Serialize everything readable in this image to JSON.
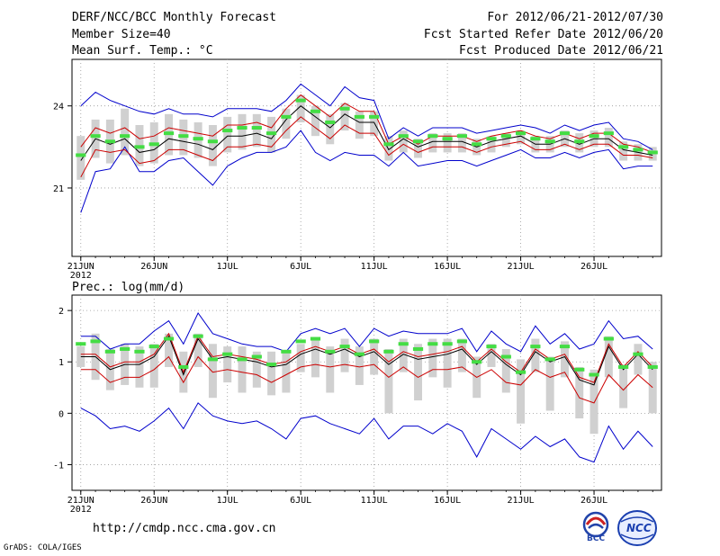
{
  "header": {
    "title": "DERF/NCC/BCC Monthly Forecast",
    "member_size": "Member Size=40",
    "variable": "Mean Surf. Temp.: °C",
    "forecast_period": "For 2012/06/21-2012/07/30",
    "started_refer_date": "Fcst Started Refer Date 2012/06/20",
    "produced_date": "Fcst Produced Date 2012/06/21"
  },
  "footer": {
    "url": "http://cmdp.ncc.cma.gov.cn",
    "credit": "GrADS: COLA/IGES",
    "logo_left_text": "BCC",
    "logo_right_text": "NCC"
  },
  "colors": {
    "mean": "#000000",
    "max": "#0000cc",
    "min": "#cc0000",
    "box": "#d0d0d0",
    "marker": "#44dd44"
  },
  "chart_data": [
    {
      "type": "line",
      "title": "Mean Surf. Temp.: °C",
      "xlabel": "",
      "ylabel": "",
      "ylim": [
        18.5,
        25.7
      ],
      "yticks": [
        21,
        24
      ],
      "x": [
        1,
        2,
        3,
        4,
        5,
        6,
        7,
        8,
        9,
        10,
        11,
        12,
        13,
        14,
        15,
        16,
        17,
        18,
        19,
        20,
        21,
        22,
        23,
        24,
        25,
        26,
        27,
        28,
        29,
        30,
        31,
        32,
        33,
        34,
        35,
        36,
        37,
        38,
        39,
        40
      ],
      "xticks": [
        {
          "x": 1,
          "label": "21JUN"
        },
        {
          "x": 6,
          "label": "26JUN"
        },
        {
          "x": 11,
          "label": "1JUL"
        },
        {
          "x": 16,
          "label": "6JUL"
        },
        {
          "x": 21,
          "label": "11JUL"
        },
        {
          "x": 26,
          "label": "16JUL"
        },
        {
          "x": 31,
          "label": "21JUL"
        },
        {
          "x": 36,
          "label": "26JUL"
        }
      ],
      "year_label": "2012",
      "series": [
        {
          "name": "max",
          "values": [
            24.0,
            24.5,
            24.2,
            24.0,
            23.8,
            23.7,
            23.9,
            23.7,
            23.7,
            23.6,
            23.9,
            23.9,
            23.9,
            23.8,
            24.2,
            24.8,
            24.4,
            24.0,
            24.7,
            24.3,
            24.2,
            22.8,
            23.2,
            22.9,
            23.2,
            23.2,
            23.2,
            23.0,
            23.1,
            23.2,
            23.3,
            23.2,
            23.0,
            23.3,
            23.1,
            23.3,
            23.4,
            22.8,
            22.7,
            22.4
          ]
        },
        {
          "name": "max_inner",
          "values": [
            22.5,
            23.2,
            23.0,
            23.2,
            22.8,
            22.9,
            23.2,
            23.1,
            23.0,
            22.9,
            23.3,
            23.3,
            23.4,
            23.2,
            23.9,
            24.4,
            24.0,
            23.6,
            24.1,
            23.8,
            23.8,
            22.6,
            22.9,
            22.6,
            22.9,
            22.9,
            22.9,
            22.7,
            22.9,
            23.0,
            23.1,
            22.9,
            22.8,
            23.0,
            22.8,
            23.0,
            23.0,
            22.6,
            22.5,
            22.3
          ]
        },
        {
          "name": "mean",
          "values": [
            22.0,
            22.8,
            22.6,
            22.8,
            22.3,
            22.4,
            22.8,
            22.7,
            22.6,
            22.4,
            22.9,
            22.9,
            23.0,
            22.8,
            23.5,
            24.0,
            23.6,
            23.2,
            23.7,
            23.4,
            23.4,
            22.4,
            22.8,
            22.5,
            22.7,
            22.7,
            22.7,
            22.5,
            22.7,
            22.8,
            22.9,
            22.6,
            22.6,
            22.8,
            22.6,
            22.8,
            22.8,
            22.4,
            22.3,
            22.2
          ]
        },
        {
          "name": "min_inner",
          "values": [
            21.4,
            22.4,
            22.3,
            22.4,
            21.9,
            22.0,
            22.4,
            22.4,
            22.2,
            22.0,
            22.5,
            22.5,
            22.6,
            22.5,
            23.1,
            23.6,
            23.2,
            22.8,
            23.3,
            23.0,
            23.0,
            22.2,
            22.6,
            22.3,
            22.5,
            22.5,
            22.5,
            22.3,
            22.5,
            22.6,
            22.7,
            22.4,
            22.4,
            22.6,
            22.4,
            22.6,
            22.6,
            22.2,
            22.2,
            22.1
          ]
        },
        {
          "name": "min",
          "values": [
            20.1,
            21.6,
            21.7,
            22.5,
            21.6,
            21.6,
            22.0,
            22.1,
            21.6,
            21.1,
            21.8,
            22.1,
            22.3,
            22.3,
            22.5,
            23.1,
            22.3,
            22.0,
            22.3,
            22.2,
            22.2,
            21.8,
            22.3,
            21.8,
            21.9,
            22.0,
            22.0,
            21.8,
            22.0,
            22.2,
            22.4,
            22.1,
            22.1,
            22.3,
            22.1,
            22.3,
            22.4,
            21.7,
            21.8,
            21.8
          ]
        },
        {
          "name": "box_top",
          "values": [
            22.9,
            23.5,
            23.5,
            23.9,
            23.3,
            23.4,
            23.7,
            23.5,
            23.4,
            23.3,
            23.6,
            23.7,
            23.7,
            23.6,
            23.9,
            24.4,
            24.0,
            23.7,
            24.1,
            23.8,
            23.8,
            22.9,
            23.1,
            22.8,
            23.0,
            23.0,
            23.0,
            22.8,
            22.9,
            23.0,
            23.1,
            22.9,
            22.9,
            23.1,
            23.0,
            23.1,
            23.2,
            22.7,
            22.6,
            22.5
          ]
        },
        {
          "name": "box_bottom",
          "values": [
            21.3,
            22.1,
            21.9,
            22.2,
            21.8,
            21.9,
            22.2,
            22.2,
            22.1,
            21.8,
            22.3,
            22.4,
            22.5,
            22.3,
            22.8,
            23.4,
            22.9,
            22.6,
            23.1,
            22.8,
            22.9,
            22.0,
            22.3,
            22.1,
            22.3,
            22.3,
            22.3,
            22.2,
            22.3,
            22.5,
            22.6,
            22.3,
            22.3,
            22.5,
            22.3,
            22.5,
            22.5,
            22.0,
            22.0,
            22.0
          ]
        },
        {
          "name": "marker",
          "values": [
            22.2,
            22.9,
            22.7,
            22.9,
            22.5,
            22.6,
            23.0,
            22.9,
            22.8,
            22.7,
            23.1,
            23.2,
            23.2,
            23.0,
            23.6,
            24.2,
            23.8,
            23.4,
            23.9,
            23.6,
            23.6,
            22.6,
            22.9,
            22.7,
            22.9,
            22.8,
            22.9,
            22.6,
            22.8,
            22.9,
            23.0,
            22.8,
            22.7,
            23.0,
            22.7,
            22.9,
            23.0,
            22.5,
            22.4,
            22.3
          ]
        }
      ]
    },
    {
      "type": "line",
      "title": "Prec.: log(mm/d)",
      "xlabel": "",
      "ylabel": "",
      "ylim": [
        -1.5,
        2.3
      ],
      "yticks": [
        -1,
        0,
        1,
        2
      ],
      "x": [
        1,
        2,
        3,
        4,
        5,
        6,
        7,
        8,
        9,
        10,
        11,
        12,
        13,
        14,
        15,
        16,
        17,
        18,
        19,
        20,
        21,
        22,
        23,
        24,
        25,
        26,
        27,
        28,
        29,
        30,
        31,
        32,
        33,
        34,
        35,
        36,
        37,
        38,
        39,
        40
      ],
      "xticks": [
        {
          "x": 1,
          "label": "21JUN"
        },
        {
          "x": 6,
          "label": "26JUN"
        },
        {
          "x": 11,
          "label": "1JUL"
        },
        {
          "x": 16,
          "label": "6JUL"
        },
        {
          "x": 21,
          "label": "11JUL"
        },
        {
          "x": 26,
          "label": "16JUL"
        },
        {
          "x": 31,
          "label": "21JUL"
        },
        {
          "x": 36,
          "label": "26JUL"
        }
      ],
      "year_label": "2012",
      "series": [
        {
          "name": "max",
          "values": [
            1.5,
            1.5,
            1.25,
            1.35,
            1.35,
            1.6,
            1.8,
            1.35,
            1.95,
            1.55,
            1.45,
            1.35,
            1.3,
            1.3,
            1.2,
            1.55,
            1.65,
            1.55,
            1.65,
            1.3,
            1.65,
            1.5,
            1.6,
            1.55,
            1.55,
            1.55,
            1.65,
            1.2,
            1.6,
            1.35,
            1.2,
            1.7,
            1.35,
            1.55,
            1.25,
            1.35,
            1.8,
            1.45,
            1.5,
            1.25
          ]
        },
        {
          "name": "max_inner",
          "values": [
            1.15,
            1.15,
            0.9,
            1.0,
            1.0,
            1.15,
            1.55,
            0.8,
            1.5,
            1.1,
            1.15,
            1.1,
            1.05,
            0.95,
            1.0,
            1.2,
            1.3,
            1.2,
            1.3,
            1.15,
            1.25,
            1.0,
            1.2,
            1.1,
            1.15,
            1.2,
            1.3,
            1.0,
            1.25,
            1.0,
            0.8,
            1.25,
            1.05,
            1.15,
            0.7,
            0.6,
            1.35,
            0.9,
            1.2,
            0.9
          ]
        },
        {
          "name": "mean",
          "values": [
            1.1,
            1.1,
            0.85,
            0.95,
            0.95,
            1.1,
            1.5,
            0.75,
            1.45,
            1.05,
            1.1,
            1.05,
            1.0,
            0.9,
            0.95,
            1.15,
            1.25,
            1.15,
            1.25,
            1.1,
            1.2,
            0.95,
            1.15,
            1.05,
            1.1,
            1.15,
            1.25,
            0.95,
            1.2,
            0.95,
            0.75,
            1.2,
            1.0,
            1.1,
            0.65,
            0.55,
            1.3,
            0.85,
            1.15,
            0.85
          ]
        },
        {
          "name": "min_inner",
          "values": [
            0.85,
            0.85,
            0.6,
            0.7,
            0.7,
            0.85,
            1.1,
            0.6,
            1.1,
            0.8,
            0.85,
            0.8,
            0.75,
            0.6,
            0.75,
            0.9,
            0.95,
            0.9,
            0.95,
            0.9,
            0.95,
            0.7,
            0.9,
            0.7,
            0.85,
            0.85,
            0.9,
            0.7,
            0.85,
            0.6,
            0.55,
            0.85,
            0.7,
            0.8,
            0.3,
            0.2,
            0.75,
            0.45,
            0.75,
            0.5
          ]
        },
        {
          "name": "min",
          "values": [
            0.1,
            -0.05,
            -0.3,
            -0.25,
            -0.35,
            -0.15,
            0.1,
            -0.3,
            0.2,
            -0.05,
            -0.15,
            -0.2,
            -0.15,
            -0.3,
            -0.5,
            -0.1,
            -0.05,
            -0.2,
            -0.3,
            -0.4,
            -0.1,
            -0.5,
            -0.25,
            -0.25,
            -0.4,
            -0.2,
            -0.35,
            -0.85,
            -0.3,
            -0.5,
            -0.7,
            -0.45,
            -0.65,
            -0.5,
            -0.85,
            -0.95,
            -0.25,
            -0.7,
            -0.35,
            -0.65
          ]
        },
        {
          "name": "box_top",
          "values": [
            1.3,
            1.55,
            1.25,
            1.35,
            1.3,
            1.35,
            1.55,
            1.2,
            1.55,
            1.35,
            1.3,
            1.3,
            1.2,
            1.2,
            1.2,
            1.35,
            1.45,
            1.3,
            1.45,
            1.3,
            1.45,
            1.25,
            1.45,
            1.35,
            1.45,
            1.45,
            1.45,
            1.1,
            1.35,
            1.25,
            1.05,
            1.45,
            1.1,
            1.4,
            0.9,
            0.85,
            1.5,
            0.95,
            1.35,
            1.0
          ]
        },
        {
          "name": "box_bottom",
          "values": [
            0.9,
            0.65,
            0.45,
            0.55,
            0.5,
            0.5,
            0.9,
            0.4,
            0.9,
            0.3,
            0.6,
            0.4,
            0.5,
            0.35,
            0.4,
            0.8,
            0.7,
            0.4,
            0.8,
            0.55,
            0.75,
            0.0,
            0.8,
            0.25,
            0.7,
            0.5,
            0.8,
            0.3,
            0.9,
            0.4,
            -0.2,
            0.8,
            0.05,
            0.7,
            -0.1,
            -0.4,
            0.7,
            0.1,
            0.75,
            0.0
          ]
        },
        {
          "name": "marker",
          "values": [
            1.35,
            1.4,
            1.2,
            1.25,
            1.2,
            1.3,
            1.45,
            0.9,
            1.5,
            1.05,
            1.15,
            1.05,
            1.1,
            0.95,
            1.2,
            1.4,
            1.45,
            1.2,
            1.3,
            1.15,
            1.4,
            1.2,
            1.35,
            1.25,
            1.35,
            1.35,
            1.4,
            1.0,
            1.3,
            1.1,
            0.8,
            1.3,
            1.05,
            1.3,
            0.85,
            0.75,
            1.45,
            0.9,
            1.15,
            0.9
          ]
        }
      ]
    }
  ]
}
